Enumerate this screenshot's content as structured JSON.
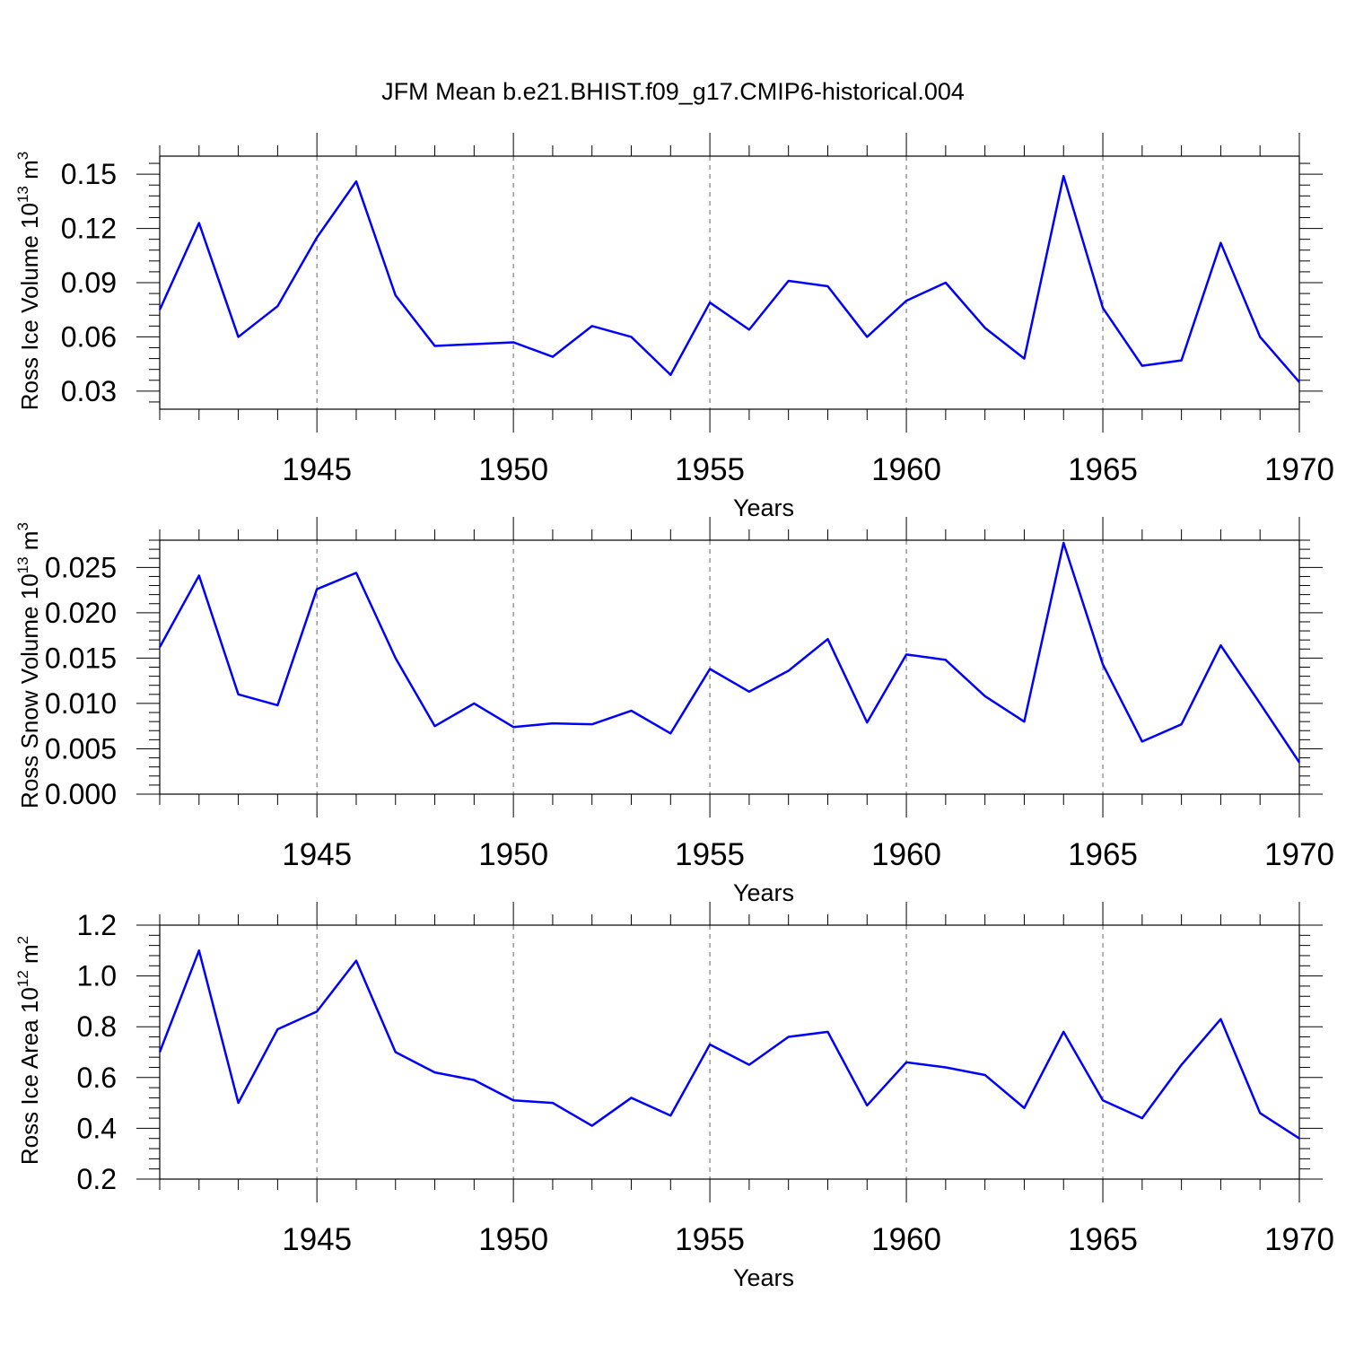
{
  "title": "JFM Mean b.e21.BHIST.f09_g17.CMIP6-historical.004",
  "colors": {
    "series": "#0000ff",
    "axes": "#000000",
    "grid": "#666666"
  },
  "chart_data": [
    {
      "type": "line",
      "ylabel": {
        "text": "Ross Ice Volume 10",
        "sup": "13",
        "unit": " m",
        "unit_sup": "3"
      },
      "xlabel": "Years",
      "xlim": [
        1941,
        1970
      ],
      "ylim": [
        0.02,
        0.16
      ],
      "yticks": [
        0.03,
        0.06,
        0.09,
        0.12,
        0.15
      ],
      "ytick_labels": [
        "0.03",
        "0.06",
        "0.09",
        "0.12",
        "0.15"
      ],
      "xticks": [
        1945,
        1950,
        1955,
        1960,
        1965,
        1970
      ],
      "xtick_labels": [
        "1945",
        "1950",
        "1955",
        "1960",
        "1965",
        "1970"
      ],
      "grid": "vertical dashed at major x ticks",
      "x": [
        1941,
        1942,
        1943,
        1944,
        1945,
        1946,
        1947,
        1948,
        1949,
        1950,
        1951,
        1952,
        1953,
        1954,
        1955,
        1956,
        1957,
        1958,
        1959,
        1960,
        1961,
        1962,
        1963,
        1964,
        1965,
        1966,
        1967,
        1968,
        1969,
        1970
      ],
      "values": [
        0.075,
        0.123,
        0.06,
        0.077,
        0.115,
        0.146,
        0.083,
        0.055,
        0.056,
        0.057,
        0.049,
        0.066,
        0.06,
        0.039,
        0.079,
        0.064,
        0.091,
        0.088,
        0.06,
        0.08,
        0.09,
        0.065,
        0.048,
        0.149,
        0.076,
        0.044,
        0.047,
        0.112,
        0.06,
        0.035
      ]
    },
    {
      "type": "line",
      "ylabel": {
        "text": "Ross Snow Volume 10",
        "sup": "13",
        "unit": " m",
        "unit_sup": "3"
      },
      "xlabel": "Years",
      "xlim": [
        1941,
        1970
      ],
      "ylim": [
        0.0,
        0.028
      ],
      "yticks": [
        0.0,
        0.005,
        0.01,
        0.015,
        0.02,
        0.025
      ],
      "ytick_labels": [
        "0.000",
        "0.005",
        "0.010",
        "0.015",
        "0.020",
        "0.025"
      ],
      "xticks": [
        1945,
        1950,
        1955,
        1960,
        1965,
        1970
      ],
      "xtick_labels": [
        "1945",
        "1950",
        "1955",
        "1960",
        "1965",
        "1970"
      ],
      "grid": "vertical dashed at major x ticks",
      "x": [
        1941,
        1942,
        1943,
        1944,
        1945,
        1946,
        1947,
        1948,
        1949,
        1950,
        1951,
        1952,
        1953,
        1954,
        1955,
        1956,
        1957,
        1958,
        1959,
        1960,
        1961,
        1962,
        1963,
        1964,
        1965,
        1966,
        1967,
        1968,
        1969,
        1970
      ],
      "values": [
        0.0162,
        0.0241,
        0.011,
        0.0098,
        0.0226,
        0.0244,
        0.015,
        0.0075,
        0.01,
        0.0074,
        0.0078,
        0.0077,
        0.0092,
        0.0067,
        0.0138,
        0.0113,
        0.0136,
        0.0171,
        0.0079,
        0.0154,
        0.0148,
        0.0108,
        0.008,
        0.0277,
        0.0143,
        0.0058,
        0.0077,
        0.0164,
        0.01,
        0.0035
      ]
    },
    {
      "type": "line",
      "ylabel": {
        "text": "Ross Ice Area 10",
        "sup": "12",
        "unit": " m",
        "unit_sup": "2"
      },
      "xlabel": "Years",
      "xlim": [
        1941,
        1970
      ],
      "ylim": [
        0.2,
        1.2
      ],
      "yticks": [
        0.2,
        0.4,
        0.6,
        0.8,
        1.0,
        1.2
      ],
      "ytick_labels": [
        "0.2",
        "0.4",
        "0.6",
        "0.8",
        "1.0",
        "1.2"
      ],
      "xticks": [
        1945,
        1950,
        1955,
        1960,
        1965,
        1970
      ],
      "xtick_labels": [
        "1945",
        "1950",
        "1955",
        "1960",
        "1965",
        "1970"
      ],
      "grid": "vertical dashed at major x ticks",
      "x": [
        1941,
        1942,
        1943,
        1944,
        1945,
        1946,
        1947,
        1948,
        1949,
        1950,
        1951,
        1952,
        1953,
        1954,
        1955,
        1956,
        1957,
        1958,
        1959,
        1960,
        1961,
        1962,
        1963,
        1964,
        1965,
        1966,
        1967,
        1968,
        1969,
        1970
      ],
      "values": [
        0.7,
        1.1,
        0.5,
        0.79,
        0.86,
        1.06,
        0.7,
        0.62,
        0.59,
        0.51,
        0.5,
        0.41,
        0.52,
        0.45,
        0.73,
        0.65,
        0.76,
        0.78,
        0.49,
        0.66,
        0.64,
        0.61,
        0.48,
        0.78,
        0.51,
        0.44,
        0.65,
        0.83,
        0.46,
        0.36
      ]
    }
  ]
}
